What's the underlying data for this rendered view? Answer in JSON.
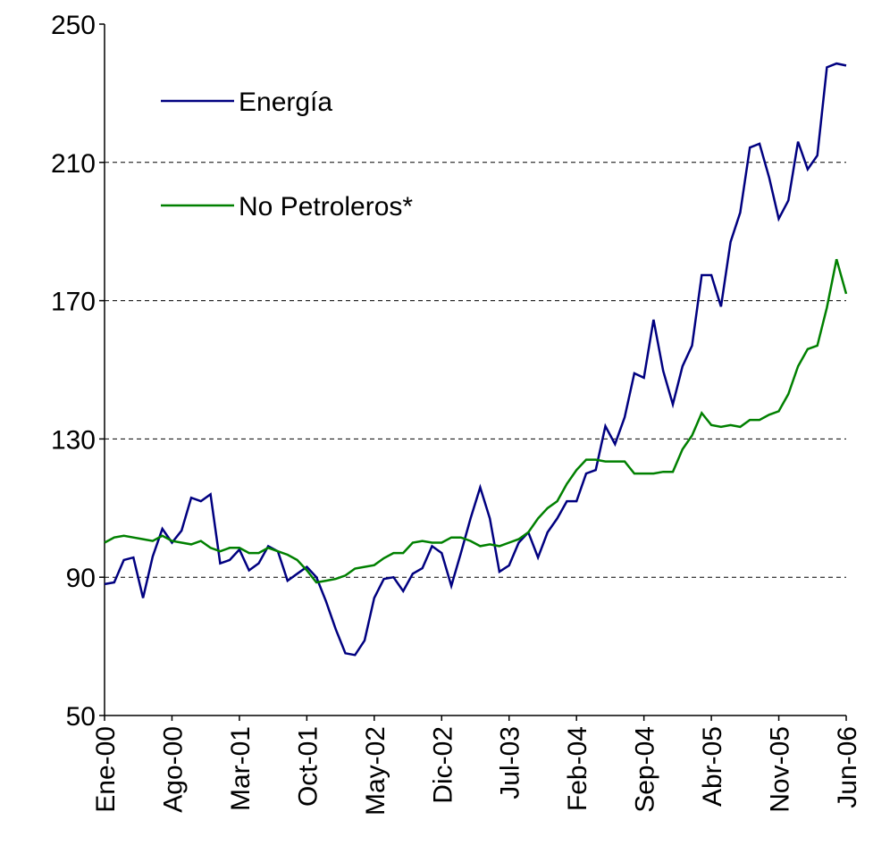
{
  "chart_data": {
    "type": "line",
    "categories": [
      "Ene-00",
      null,
      null,
      null,
      null,
      null,
      null,
      "Ago-00",
      null,
      null,
      null,
      null,
      null,
      null,
      "Mar-01",
      null,
      null,
      null,
      null,
      null,
      null,
      "Oct-01",
      null,
      null,
      null,
      null,
      null,
      null,
      "May-02",
      null,
      null,
      null,
      null,
      null,
      null,
      "Dic-02",
      null,
      null,
      null,
      null,
      null,
      null,
      "Jul-03",
      null,
      null,
      null,
      null,
      null,
      null,
      "Feb-04",
      null,
      null,
      null,
      null,
      null,
      null,
      "Sep-04",
      null,
      null,
      null,
      null,
      null,
      null,
      "Abr-05",
      null,
      null,
      null,
      null,
      null,
      null,
      "Nov-05",
      null,
      null,
      null,
      null,
      null,
      null,
      "Jun-06"
    ],
    "series": [
      {
        "name": "Energía",
        "color": "#000080",
        "values": [
          88,
          88.5,
          95,
          95.7,
          84,
          96,
          104,
          100,
          103.5,
          113,
          112,
          114,
          94,
          95,
          98,
          92,
          94,
          99,
          97.5,
          89,
          91,
          93,
          90,
          83,
          75,
          68,
          67.5,
          71.7,
          84,
          89.5,
          90,
          86,
          91,
          92.6,
          99,
          97,
          87.5,
          97,
          107,
          116,
          107,
          91.6,
          93.4,
          100,
          103,
          95.7,
          103,
          107,
          112,
          112,
          120,
          121,
          133.7,
          128.5,
          136.3,
          149,
          147.7,
          164.5,
          149.7,
          140,
          151,
          157,
          177.4,
          177.4,
          168.3,
          187,
          195.5,
          214.3,
          215.4,
          205.6,
          193.7,
          199,
          216,
          208,
          212,
          237.5,
          238.6,
          238
        ]
      },
      {
        "name": "No Petroleros*",
        "color": "#008000",
        "values": [
          100,
          101.5,
          102,
          101.5,
          101,
          100.5,
          102,
          100.5,
          100,
          99.5,
          100.5,
          98.5,
          97.5,
          98.5,
          98.5,
          97,
          97,
          98.5,
          97.5,
          96.5,
          95,
          92,
          88.5,
          89,
          89.5,
          90.5,
          92.5,
          93,
          93.5,
          95.5,
          97,
          97,
          100,
          100.5,
          100,
          100,
          101.5,
          101.5,
          100.5,
          99,
          99.5,
          99,
          100,
          101,
          103,
          107,
          110,
          112,
          117,
          121,
          124,
          124,
          123.5,
          123.5,
          123.5,
          120,
          120,
          120,
          120.5,
          120.5,
          127,
          131,
          137.5,
          134,
          133.5,
          134,
          133.5,
          135.5,
          135.5,
          137,
          138,
          143,
          151,
          156,
          157,
          168,
          182,
          172
        ]
      }
    ],
    "ylim": [
      50,
      250
    ],
    "yticks": [
      50,
      90,
      130,
      170,
      210,
      250
    ],
    "grid": true
  }
}
